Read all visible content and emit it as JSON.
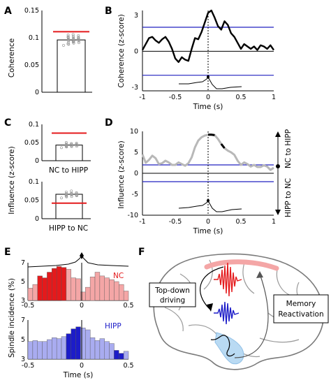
{
  "panel_labels": [
    "A",
    "B",
    "C",
    "D",
    "E",
    "F"
  ],
  "chart_data": [
    {
      "id": "A",
      "type": "bar",
      "ylabel": "Coherence",
      "ylim": [
        0,
        0.15
      ],
      "yticks": [
        "0",
        "0.05",
        "0.1",
        "0.15"
      ],
      "bar_value": 0.096,
      "surrogate_line": 0.111,
      "dots": [
        0.086,
        0.088,
        0.09,
        0.091,
        0.092,
        0.093,
        0.094,
        0.095,
        0.095,
        0.096,
        0.096,
        0.097,
        0.097,
        0.098,
        0.098,
        0.099,
        0.1,
        0.1,
        0.101,
        0.102,
        0.103,
        0.104,
        0.105,
        0.092,
        0.099,
        0.101,
        0.094,
        0.097,
        0.089,
        0.106
      ]
    },
    {
      "id": "B",
      "type": "line",
      "xlabel": "Time (s)",
      "ylabel": "Coherence (z-score)",
      "xlim": [
        -1,
        1
      ],
      "ylim": [
        -3.3,
        3.4
      ],
      "xticks": [
        "-1",
        "-0.5",
        "0",
        "0.5",
        "1"
      ],
      "yticks": [
        "3",
        "0",
        "-3"
      ],
      "thresholds": [
        2,
        -2
      ],
      "x": [
        -1,
        -0.95,
        -0.9,
        -0.85,
        -0.8,
        -0.75,
        -0.7,
        -0.65,
        -0.6,
        -0.55,
        -0.5,
        -0.45,
        -0.4,
        -0.35,
        -0.3,
        -0.25,
        -0.2,
        -0.15,
        -0.1,
        -0.05,
        0,
        0.05,
        0.1,
        0.15,
        0.2,
        0.25,
        0.3,
        0.35,
        0.4,
        0.45,
        0.5,
        0.55,
        0.6,
        0.65,
        0.7,
        0.75,
        0.8,
        0.85,
        0.9,
        0.95,
        1
      ],
      "y": [
        0.1,
        0.6,
        1.1,
        1.2,
        0.9,
        0.7,
        1.0,
        1.2,
        0.8,
        0.2,
        -0.6,
        -0.9,
        -0.5,
        -0.7,
        -0.8,
        0.2,
        1.1,
        1.0,
        1.6,
        2.4,
        3.2,
        3.4,
        2.8,
        2.1,
        1.8,
        2.5,
        2.2,
        1.5,
        1.2,
        0.7,
        0.2,
        0.6,
        0.4,
        0.2,
        0.4,
        0.1,
        0.5,
        0.4,
        0.2,
        0.5,
        0.1
      ]
    },
    {
      "id": "C-top",
      "type": "bar",
      "ylabel": "Influence (z-score)",
      "ylim": [
        0,
        0.1
      ],
      "yticks": [
        "0",
        "0.05",
        "0.1"
      ],
      "category": "NC to HIPP",
      "bar_value": 0.043,
      "surrogate_line": 0.076,
      "dots": [
        0.036,
        0.038,
        0.039,
        0.04,
        0.041,
        0.042,
        0.043,
        0.043,
        0.044,
        0.045,
        0.046,
        0.047,
        0.048,
        0.05,
        0.041,
        0.045,
        0.039,
        0.047,
        0.044,
        0.042
      ]
    },
    {
      "id": "C-bottom",
      "type": "bar",
      "ylim": [
        0,
        0.1
      ],
      "yticks": [
        "0",
        "0.05",
        "0.1"
      ],
      "category": "HIPP to NC",
      "bar_value": 0.066,
      "surrogate_line": 0.042,
      "dots": [
        0.056,
        0.059,
        0.06,
        0.062,
        0.063,
        0.064,
        0.065,
        0.066,
        0.066,
        0.067,
        0.068,
        0.069,
        0.07,
        0.072,
        0.075,
        0.063,
        0.061,
        0.068,
        0.07,
        0.064
      ]
    },
    {
      "id": "D",
      "type": "line",
      "xlabel": "Time (s)",
      "ylabel": "Influence (z-score)",
      "xlim": [
        -1,
        1
      ],
      "ylim": [
        -10,
        10
      ],
      "xticks": [
        "-1",
        "-0.5",
        "0",
        "0.5",
        "1"
      ],
      "yticks": [
        "10",
        "5",
        "0",
        "-5",
        "-10"
      ],
      "thresholds": [
        2,
        -2
      ],
      "x": [
        -1,
        -0.95,
        -0.9,
        -0.85,
        -0.8,
        -0.75,
        -0.7,
        -0.65,
        -0.6,
        -0.55,
        -0.5,
        -0.45,
        -0.4,
        -0.35,
        -0.3,
        -0.25,
        -0.2,
        -0.15,
        -0.1,
        -0.05,
        0,
        0.05,
        0.1,
        0.15,
        0.2,
        0.25,
        0.3,
        0.35,
        0.4,
        0.45,
        0.5,
        0.55,
        0.6,
        0.65,
        0.7,
        0.75,
        0.8,
        0.85,
        0.9,
        0.95,
        1
      ],
      "y": [
        4.5,
        2.5,
        3.2,
        4.2,
        3.6,
        2.2,
        2.4,
        3.0,
        2.6,
        2.0,
        2.0,
        2.6,
        2.2,
        1.8,
        2.4,
        3.8,
        6.2,
        7.8,
        8.6,
        9.0,
        9.2,
        9.2,
        9.1,
        8.2,
        7.0,
        6.0,
        5.4,
        5.0,
        4.4,
        3.0,
        2.0,
        2.6,
        2.2,
        1.6,
        2.0,
        1.5,
        1.5,
        1.9,
        1.6,
        0.8,
        1.3
      ],
      "direction_labels": [
        "NC to HIPP",
        "HIPP to NC"
      ]
    },
    {
      "id": "E-NC",
      "type": "bar",
      "ylabel": "Spindle incidence (%)",
      "series_name": "NC",
      "ylim": [
        3,
        7
      ],
      "yticks": [
        "7",
        "5",
        "3"
      ],
      "bin_start": -0.5,
      "bin_width": 0.05,
      "values": [
        4.3,
        4.7,
        5.6,
        5.4,
        6.0,
        6.4,
        6.6,
        6.5,
        6.3,
        5.4,
        5.3,
        3.9,
        4.4,
        5.5,
        6.0,
        5.6,
        5.4,
        5.2,
        5.0,
        4.7,
        4.0
      ],
      "color": "#f4a6a6",
      "highlight_color": "#e41a1c",
      "highlight_range": [
        -0.4,
        -0.1
      ]
    },
    {
      "id": "E-HIPP",
      "type": "bar",
      "xlabel": "Time (s)",
      "series_name": "HIPP",
      "xlim": [
        -0.5,
        0.5
      ],
      "ylim": [
        3,
        7
      ],
      "xticks": [
        "-0.5",
        "0",
        "0.5"
      ],
      "yticks": [
        "7",
        "5",
        "3"
      ],
      "bin_start": -0.5,
      "bin_width": 0.05,
      "values": [
        4.8,
        4.9,
        4.8,
        4.8,
        5.0,
        5.2,
        5.1,
        5.3,
        5.6,
        6.1,
        6.3,
        6.2,
        6.0,
        5.2,
        4.9,
        5.1,
        4.8,
        4.6,
        3.9,
        3.6,
        3.8
      ],
      "color": "#a9acf0",
      "highlight_color": "#1c1cc8",
      "highlight_range": [
        -0.1,
        0.05
      ],
      "tail_highlight_range": [
        0.4,
        0.5
      ]
    }
  ],
  "diagram_F": {
    "labels": [
      "Top-down driving",
      "Memory Reactivation"
    ],
    "colors": {
      "nc": "#e41a1c",
      "hipp": "#1c1cc8",
      "hipp_area": "#b9daf3",
      "cortex_band": "#f4a6a6"
    }
  }
}
